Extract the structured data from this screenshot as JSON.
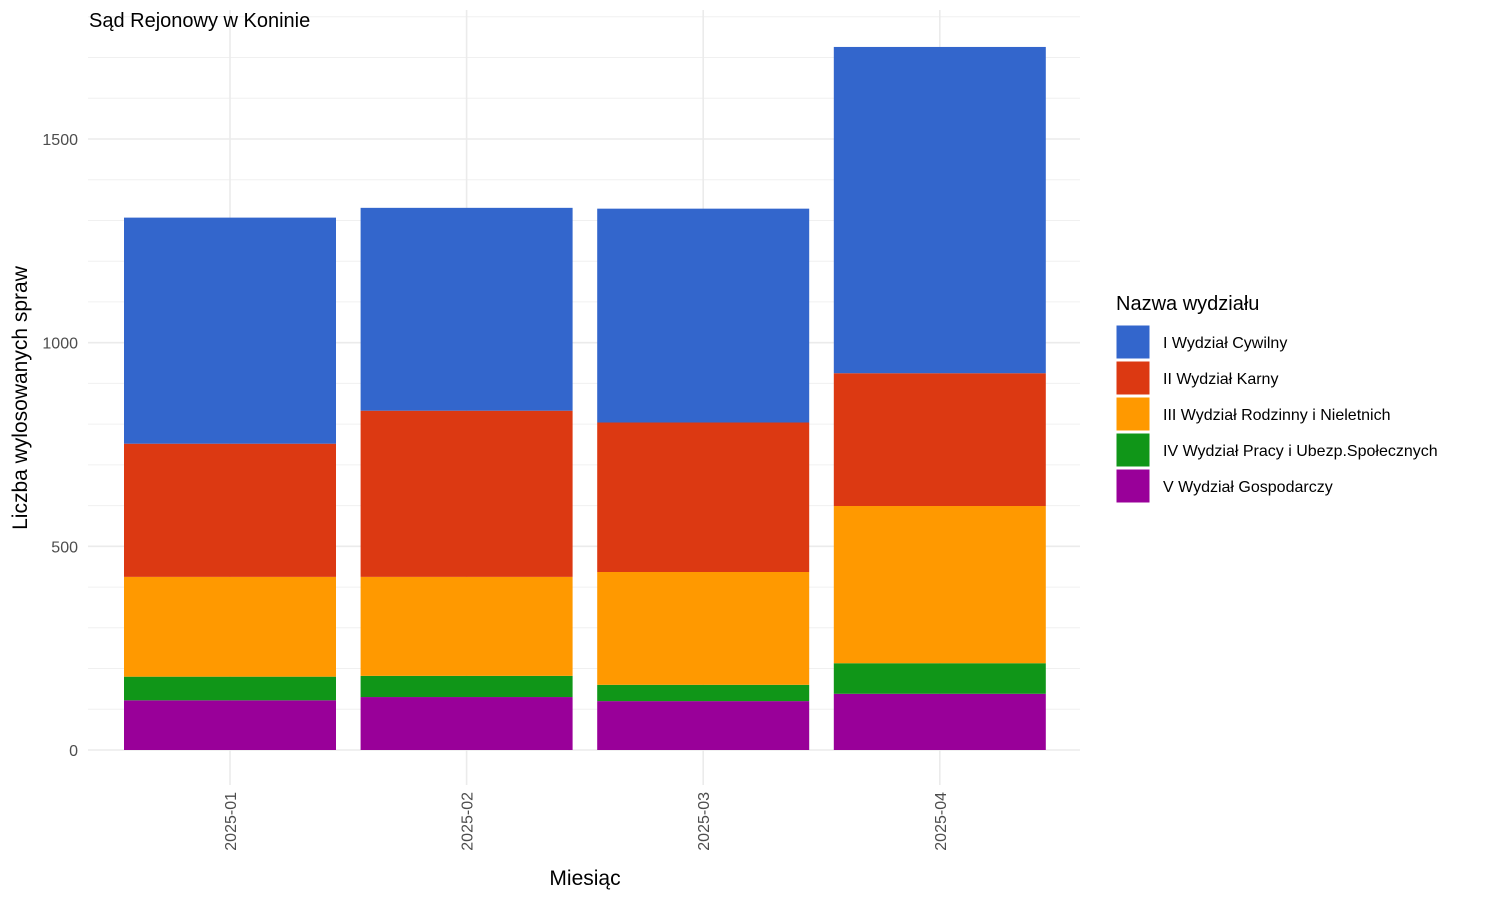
{
  "chart_data": {
    "type": "bar",
    "stacked": true,
    "title": "Sąd Rejonowy w Koninie",
    "xlabel": "Miesiąc",
    "ylabel": "Liczba wylosowanych spraw",
    "categories": [
      "2025-01",
      "2025-02",
      "2025-03",
      "2025-04"
    ],
    "ylim": [
      0,
      1800
    ],
    "yticks": [
      0,
      500,
      1000,
      1500
    ],
    "grid": true,
    "legend": {
      "title": "Nazwa wydziału",
      "position": "right"
    },
    "series": [
      {
        "name": "V Wydział Gospodarczy",
        "color": "#990099",
        "values": [
          122,
          130,
          120,
          138
        ]
      },
      {
        "name": "IV Wydział Pracy i Ubezp.Społecznych",
        "color": "#109618",
        "values": [
          58,
          52,
          40,
          75
        ]
      },
      {
        "name": "III Wydział Rodzinny i Nieletnich",
        "color": "#FF9900",
        "values": [
          245,
          243,
          277,
          386
        ]
      },
      {
        "name": "II Wydział Karny",
        "color": "#DC3912",
        "values": [
          327,
          408,
          367,
          326
        ]
      },
      {
        "name": "I Wydział Cywilny",
        "color": "#3366CC",
        "values": [
          555,
          498,
          525,
          801
        ]
      }
    ],
    "legend_order": [
      "I Wydział Cywilny",
      "II Wydział Karny",
      "III Wydział Rodzinny i Nieletnich",
      "IV Wydział Pracy i Ubezp.Społecznych",
      "V Wydział Gospodarczy"
    ]
  }
}
